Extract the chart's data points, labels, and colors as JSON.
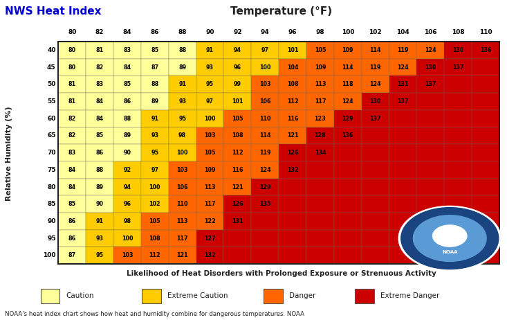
{
  "title_left": "NWS Heat Index",
  "title_center": "Temperature (°F)",
  "xlabel": "Likelihood of Heat Disorders with Prolonged Exposure or Strenuous Activity",
  "ylabel": "Relative Humidity (%)",
  "footer": "NOAA's heat index chart shows how heat and humidity combine for dangerous temperatures. NOAA",
  "temp_labels": [
    80,
    82,
    84,
    86,
    88,
    90,
    92,
    94,
    96,
    98,
    100,
    102,
    104,
    106,
    108,
    110
  ],
  "humidity_labels": [
    40,
    45,
    50,
    55,
    60,
    65,
    70,
    75,
    80,
    85,
    90,
    95,
    100
  ],
  "data": [
    [
      80,
      81,
      83,
      85,
      88,
      91,
      94,
      97,
      101,
      105,
      109,
      114,
      119,
      124,
      130,
      136
    ],
    [
      80,
      82,
      84,
      87,
      89,
      93,
      96,
      100,
      104,
      109,
      114,
      119,
      124,
      130,
      137,
      null
    ],
    [
      81,
      83,
      85,
      88,
      91,
      95,
      99,
      103,
      108,
      113,
      118,
      124,
      131,
      137,
      null,
      null
    ],
    [
      81,
      84,
      86,
      89,
      93,
      97,
      101,
      106,
      112,
      117,
      124,
      130,
      137,
      null,
      null,
      null
    ],
    [
      82,
      84,
      88,
      91,
      95,
      100,
      105,
      110,
      116,
      123,
      129,
      137,
      null,
      null,
      null,
      null
    ],
    [
      82,
      85,
      89,
      93,
      98,
      103,
      108,
      114,
      121,
      128,
      136,
      null,
      null,
      null,
      null,
      null
    ],
    [
      83,
      86,
      90,
      95,
      100,
      105,
      112,
      119,
      126,
      134,
      null,
      null,
      null,
      null,
      null,
      null
    ],
    [
      84,
      88,
      92,
      97,
      103,
      109,
      116,
      124,
      132,
      null,
      null,
      null,
      null,
      null,
      null,
      null
    ],
    [
      84,
      89,
      94,
      100,
      106,
      113,
      121,
      129,
      null,
      null,
      null,
      null,
      null,
      null,
      null,
      null
    ],
    [
      85,
      90,
      96,
      102,
      110,
      117,
      126,
      135,
      null,
      null,
      null,
      null,
      null,
      null,
      null,
      null
    ],
    [
      86,
      91,
      98,
      105,
      113,
      122,
      131,
      null,
      null,
      null,
      null,
      null,
      null,
      null,
      null,
      null
    ],
    [
      86,
      93,
      100,
      108,
      117,
      127,
      null,
      null,
      null,
      null,
      null,
      null,
      null,
      null,
      null,
      null
    ],
    [
      87,
      95,
      103,
      112,
      121,
      132,
      null,
      null,
      null,
      null,
      null,
      null,
      null,
      null,
      null,
      null
    ]
  ],
  "caution_color": "#FFFF99",
  "extreme_caution_color": "#FFCC00",
  "danger_color": "#FF6600",
  "extreme_danger_color": "#CC0000",
  "empty_color": "#CC0000",
  "border_color": "#222222",
  "title_left_color": "#0000CC",
  "bg_color": "#FFFFFF",
  "legend_items": [
    {
      "label": "Caution",
      "color": "#FFFF99"
    },
    {
      "label": "Extreme Caution",
      "color": "#FFCC00"
    },
    {
      "label": "Danger",
      "color": "#FF6600"
    },
    {
      "label": "Extreme Danger",
      "color": "#CC0000"
    }
  ],
  "caution_max": 90,
  "extreme_caution_max": 102,
  "danger_max": 124
}
